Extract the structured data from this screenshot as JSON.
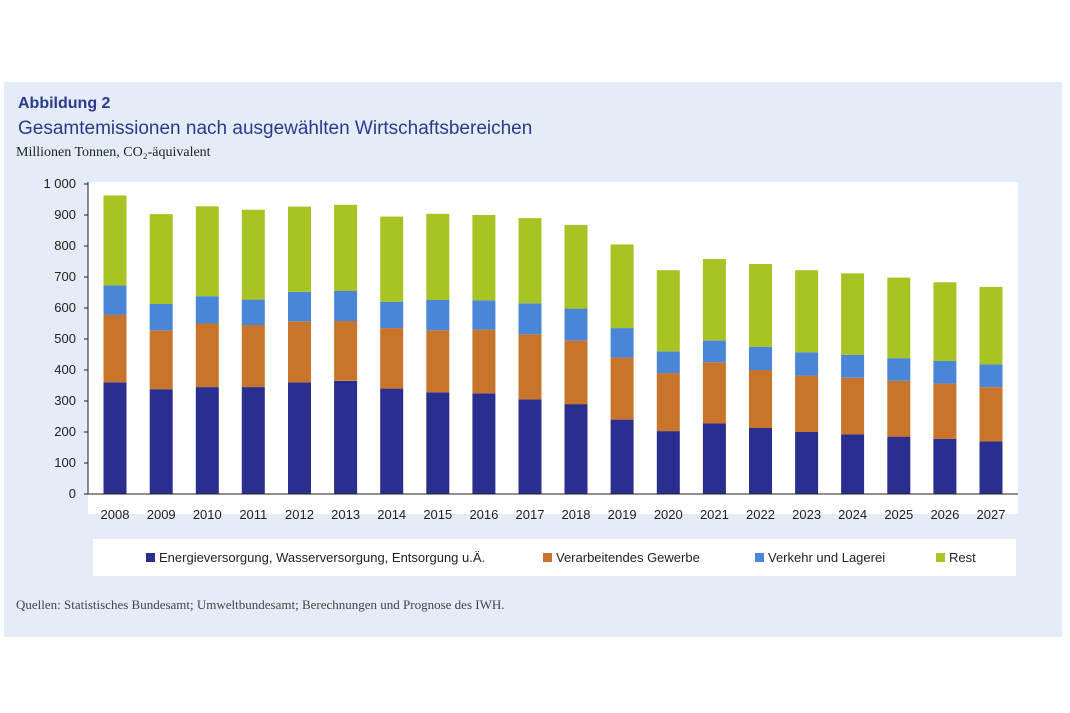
{
  "figure": {
    "label": "Abbildung 2",
    "title": "Gesamtemissionen nach ausgewählten Wirtschaftsbereichen",
    "unit": "Millionen Tonnen, CO₂-äquivalent",
    "source": "Quellen: Statistisches Bundesamt; Umweltbundesamt; Berechnungen und Prognose des IWH."
  },
  "colors": {
    "panel_bg": "#e4ecf7",
    "title": "#2b3a8c"
  },
  "chart_data": {
    "type": "bar",
    "stacked": true,
    "categories": [
      "2008",
      "2009",
      "2010",
      "2011",
      "2012",
      "2013",
      "2014",
      "2015",
      "2016",
      "2017",
      "2018",
      "2019",
      "2020",
      "2021",
      "2022",
      "2023",
      "2024",
      "2025",
      "2026",
      "2027"
    ],
    "ylim": [
      0,
      1000
    ],
    "yticks": [
      0,
      100,
      200,
      300,
      400,
      500,
      600,
      700,
      800,
      900,
      1000
    ],
    "ytick_labels": [
      "0",
      "100",
      "200",
      "300",
      "400",
      "500",
      "600",
      "700",
      "800",
      "900",
      "1 000"
    ],
    "grid": false,
    "legend_position": "bottom",
    "series": [
      {
        "name": "Energieversorgung, Wasserversorgung, Entsorgung u.Ä.",
        "color": "#2a2f8f",
        "values": [
          360,
          338,
          345,
          345,
          360,
          365,
          340,
          328,
          325,
          305,
          290,
          240,
          203,
          228,
          213,
          200,
          193,
          185,
          178,
          170
        ]
      },
      {
        "name": "Verarbeitendes Gewerbe",
        "color": "#c8742a",
        "values": [
          218,
          190,
          205,
          200,
          197,
          193,
          195,
          200,
          205,
          210,
          205,
          200,
          187,
          197,
          187,
          182,
          182,
          180,
          178,
          175
        ]
      },
      {
        "name": "Verkehr und Lagerei",
        "color": "#4a86d8",
        "values": [
          95,
          85,
          88,
          82,
          95,
          97,
          85,
          98,
          95,
          100,
          103,
          95,
          70,
          70,
          75,
          75,
          74,
          73,
          73,
          73
        ]
      },
      {
        "name": "Rest",
        "color": "#a7c424",
        "values": [
          290,
          290,
          290,
          290,
          275,
          278,
          275,
          278,
          275,
          275,
          270,
          270,
          262,
          263,
          267,
          265,
          263,
          260,
          254,
          250
        ]
      }
    ]
  }
}
